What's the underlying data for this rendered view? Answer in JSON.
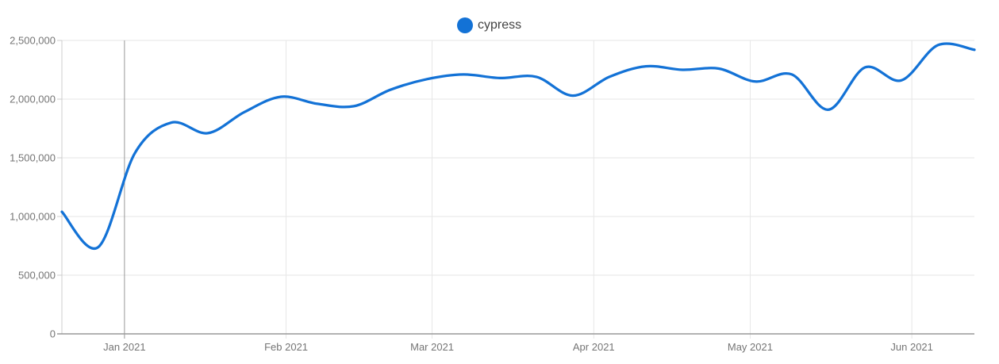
{
  "legend": {
    "label": "cypress"
  },
  "colors": {
    "line": "#1372d6",
    "grid": "#e6e6e6",
    "axis": "#999999",
    "month_major_line": "#999999",
    "left_axis": "#cccccc",
    "tick_label": "#757575",
    "legend_text": "#424242"
  },
  "chart_data": {
    "type": "line",
    "title": "",
    "legend_position": "top-center",
    "grid": true,
    "smooth": true,
    "series_color": "#1372d6",
    "y_axis": {
      "min": 0,
      "max": 2500000,
      "ticks": [
        0,
        500000,
        1000000,
        1500000,
        2000000,
        2500000
      ],
      "tick_labels": [
        "0",
        "500,000",
        "1,000,000",
        "1,500,000",
        "2,000,000",
        "2,500,000"
      ]
    },
    "x_axis": {
      "ticks": [
        {
          "date": "2021-01-01",
          "label": "Jan 2021",
          "major": true
        },
        {
          "date": "2021-02-01",
          "label": "Feb 2021",
          "major": false
        },
        {
          "date": "2021-03-01",
          "label": "Mar 2021",
          "major": false
        },
        {
          "date": "2021-04-01",
          "label": "Apr 2021",
          "major": false
        },
        {
          "date": "2021-05-01",
          "label": "May 2021",
          "major": false
        },
        {
          "date": "2021-06-01",
          "label": "Jun 2021",
          "major": false
        }
      ]
    },
    "series": [
      {
        "name": "cypress",
        "points": [
          {
            "date": "2020-12-20",
            "value": 1040000
          },
          {
            "date": "2020-12-27",
            "value": 740000
          },
          {
            "date": "2021-01-03",
            "value": 1540000
          },
          {
            "date": "2021-01-10",
            "value": 1800000
          },
          {
            "date": "2021-01-17",
            "value": 1710000
          },
          {
            "date": "2021-01-24",
            "value": 1890000
          },
          {
            "date": "2021-01-31",
            "value": 2020000
          },
          {
            "date": "2021-02-07",
            "value": 1960000
          },
          {
            "date": "2021-02-14",
            "value": 1940000
          },
          {
            "date": "2021-02-21",
            "value": 2080000
          },
          {
            "date": "2021-02-28",
            "value": 2170000
          },
          {
            "date": "2021-03-07",
            "value": 2210000
          },
          {
            "date": "2021-03-14",
            "value": 2180000
          },
          {
            "date": "2021-03-21",
            "value": 2190000
          },
          {
            "date": "2021-03-28",
            "value": 2030000
          },
          {
            "date": "2021-04-04",
            "value": 2190000
          },
          {
            "date": "2021-04-11",
            "value": 2280000
          },
          {
            "date": "2021-04-18",
            "value": 2250000
          },
          {
            "date": "2021-04-25",
            "value": 2260000
          },
          {
            "date": "2021-05-02",
            "value": 2150000
          },
          {
            "date": "2021-05-09",
            "value": 2210000
          },
          {
            "date": "2021-05-16",
            "value": 1910000
          },
          {
            "date": "2021-05-23",
            "value": 2270000
          },
          {
            "date": "2021-05-30",
            "value": 2160000
          },
          {
            "date": "2021-06-06",
            "value": 2460000
          },
          {
            "date": "2021-06-13",
            "value": 2420000
          }
        ]
      }
    ]
  }
}
